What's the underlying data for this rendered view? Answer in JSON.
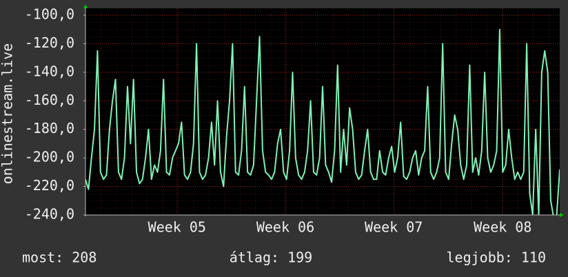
{
  "chart_data": {
    "type": "line",
    "ylabel": "onlinestream.live",
    "color": "#7ff2b4",
    "grid": true,
    "ylim": [
      -240,
      -100
    ],
    "yticks": [
      {
        "value": -100,
        "label": "-100,0"
      },
      {
        "value": -120,
        "label": "-120,0"
      },
      {
        "value": -140,
        "label": "-140,0"
      },
      {
        "value": -160,
        "label": "-160,0"
      },
      {
        "value": -180,
        "label": "-180,0"
      },
      {
        "value": -200,
        "label": "-200,0"
      },
      {
        "value": -220,
        "label": "-220,0"
      },
      {
        "value": -240,
        "label": "-240,0"
      }
    ],
    "xlim": [
      0,
      158
    ],
    "xticks": [
      {
        "value": 30.5,
        "label": "Week 05"
      },
      {
        "value": 66.6,
        "label": "Week 06"
      },
      {
        "value": 102.7,
        "label": "Week 07"
      },
      {
        "value": 139.0,
        "label": "Week 08"
      }
    ],
    "values": [
      -215,
      -222,
      -200,
      -180,
      -125,
      -210,
      -215,
      -212,
      -180,
      -160,
      -145,
      -210,
      -215,
      -200,
      -150,
      -190,
      -145,
      -210,
      -218,
      -215,
      -200,
      -180,
      -215,
      -205,
      -210,
      -195,
      -145,
      -210,
      -212,
      -200,
      -195,
      -190,
      -175,
      -212,
      -215,
      -210,
      -190,
      -120,
      -210,
      -215,
      -212,
      -200,
      -175,
      -205,
      -160,
      -210,
      -220,
      -185,
      -160,
      -120,
      -210,
      -212,
      -195,
      -150,
      -210,
      -212,
      -205,
      -160,
      -115,
      -195,
      -210,
      -212,
      -215,
      -210,
      -190,
      -180,
      -210,
      -215,
      -195,
      -140,
      -200,
      -212,
      -215,
      -210,
      -195,
      -160,
      -210,
      -212,
      -200,
      -150,
      -205,
      -210,
      -217,
      -195,
      -135,
      -210,
      -180,
      -205,
      -165,
      -180,
      -210,
      -215,
      -212,
      -195,
      -180,
      -210,
      -215,
      -215,
      -195,
      -210,
      -212,
      -200,
      -192,
      -210,
      -200,
      -175,
      -213,
      -215,
      -210,
      -200,
      -195,
      -212,
      -200,
      -195,
      -150,
      -210,
      -215,
      -210,
      -200,
      -120,
      -210,
      -215,
      -190,
      -170,
      -180,
      -205,
      -215,
      -205,
      -135,
      -210,
      -200,
      -212,
      -195,
      -140,
      -200,
      -210,
      -205,
      -195,
      -110,
      -210,
      -205,
      -180,
      -200,
      -215,
      -210,
      -215,
      -210,
      -120,
      -225,
      -240,
      -180,
      -240,
      -140,
      -125,
      -140,
      -230,
      -242,
      -240,
      -208
    ],
    "legend": [
      "most: 208",
      "átlag: 199",
      "legjobb: 110"
    ]
  }
}
